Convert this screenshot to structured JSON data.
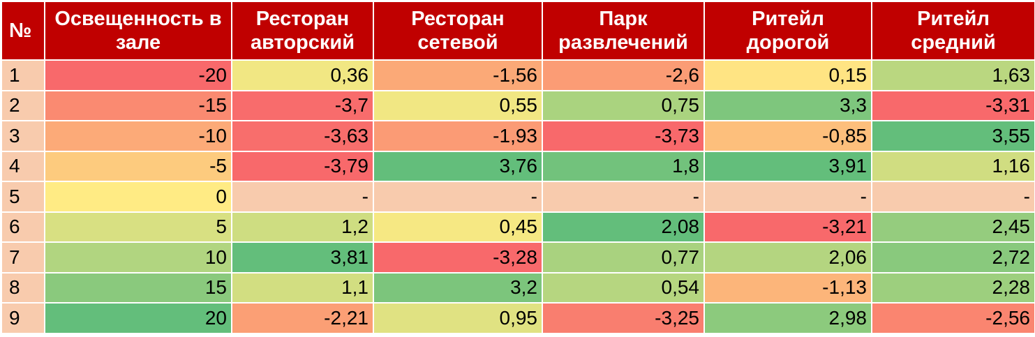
{
  "chart_data": {
    "type": "heatmap",
    "header": [
      "№",
      "Освещенность в зале",
      "Ресторан авторский",
      "Ресторан сетевой",
      "Парк развлечений",
      "Ритейл дорогой",
      "Ритейл средний"
    ],
    "rows": [
      [
        "1",
        "-20",
        "0,36",
        "-1,56",
        "-2,6",
        "0,15",
        "1,63"
      ],
      [
        "2",
        "-15",
        "-3,7",
        "0,55",
        "0,75",
        "3,3",
        "-3,31"
      ],
      [
        "3",
        "-10",
        "-3,63",
        "-1,93",
        "-3,73",
        "-0,85",
        "3,55"
      ],
      [
        "4",
        "-5",
        "-3,79",
        "3,76",
        "1,8",
        "3,91",
        "1,16"
      ],
      [
        "5",
        "0",
        "-",
        "-",
        "-",
        "-",
        "-"
      ],
      [
        "6",
        "5",
        "1,2",
        "0,45",
        "2,08",
        "-3,21",
        "2,45"
      ],
      [
        "7",
        "10",
        "3,81",
        "-3,28",
        "0,77",
        "2,06",
        "2,72"
      ],
      [
        "8",
        "15",
        "1,1",
        "3,2",
        "0,54",
        "-1,13",
        "2,28"
      ],
      [
        "9",
        "20",
        "-2,21",
        "0,95",
        "-3,25",
        "2,98",
        "-2,56"
      ]
    ],
    "colors": {
      "header_bg": "#c00000",
      "header_text": "#ffffff",
      "row_number_bg": "#f8cbad",
      "empty_cell_bg": "#f8cbad",
      "scale_low": "#f8696b",
      "scale_mid": "#ffeb84",
      "scale_high": "#63be7b"
    }
  }
}
